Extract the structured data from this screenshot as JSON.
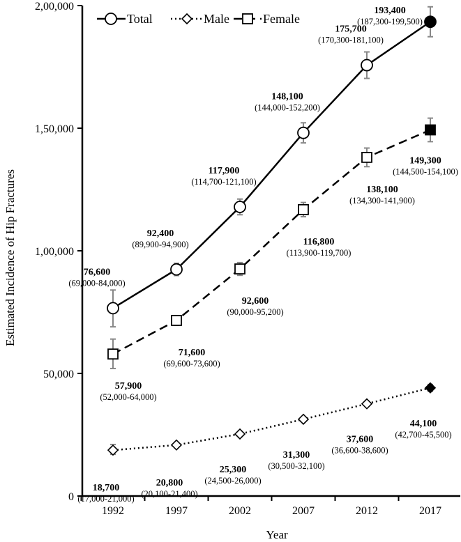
{
  "chart_data": {
    "type": "line",
    "title": "",
    "xlabel": "Year",
    "ylabel": "Estimated Incidence of Hip Fractures",
    "x": [
      "1992",
      "1997",
      "2002",
      "2007",
      "2012",
      "2017"
    ],
    "ylim": [
      0,
      200000
    ],
    "yticks": [
      "0",
      "50,000",
      "1,00,000",
      "1,50,000",
      "2,00,000"
    ],
    "ytick_values": [
      0,
      50000,
      100000,
      150000,
      200000
    ],
    "grid": false,
    "legend": "top-left",
    "series": [
      {
        "name": "Total",
        "style": "solid",
        "marker": "circle",
        "values": [
          76600,
          92400,
          117900,
          148100,
          175700,
          193400
        ],
        "ci_low": [
          69000,
          89900,
          114700,
          144000,
          170300,
          187300
        ],
        "ci_high": [
          84000,
          94900,
          121100,
          152200,
          181100,
          199500
        ],
        "labels": [
          "76,600",
          "92,400",
          "117,900",
          "148,100",
          "175,700",
          "193,400"
        ],
        "ci_labels": [
          "(69,000-84,000)",
          "(89,900-94,900)",
          "(114,700-121,100)",
          "(144,000-152,200)",
          "(170,300-181,100)",
          "(187,300-199,500)"
        ]
      },
      {
        "name": "Male",
        "style": "dotted",
        "marker": "diamond",
        "values": [
          18700,
          20800,
          25300,
          31300,
          37600,
          44100
        ],
        "ci_low": [
          17000,
          20100,
          24500,
          30500,
          36600,
          42700
        ],
        "ci_high": [
          21000,
          21400,
          26000,
          32100,
          38600,
          45500
        ],
        "labels": [
          "18,700",
          "20,800",
          "25,300",
          "31,300",
          "37,600",
          "44,100"
        ],
        "ci_labels": [
          "(17,000-21,000)",
          "(20,100-21,400)",
          "(24,500-26,000)",
          "(30,500-32,100)",
          "(36,600-38,600)",
          "(42,700-45,500)"
        ]
      },
      {
        "name": "Female",
        "style": "dashed",
        "marker": "square",
        "values": [
          57900,
          71600,
          92600,
          116800,
          138100,
          149300
        ],
        "ci_low": [
          52000,
          69600,
          90000,
          113900,
          134300,
          144500
        ],
        "ci_high": [
          64000,
          73600,
          95200,
          119700,
          141900,
          154100
        ],
        "labels": [
          "57,900",
          "71,600",
          "92,600",
          "116,800",
          "138,100",
          "149,300"
        ],
        "ci_labels": [
          "(52,000-64,000)",
          "(69,600-73,600)",
          "(90,000-95,200)",
          "(113,900-119,700)",
          "(134,300-141,900)",
          "(144,500-154,100)"
        ]
      }
    ],
    "colors": {
      "line": "#000000",
      "errorbar": "#888888",
      "marker_fill": "#ffffff",
      "projected_fill": "#000000"
    }
  }
}
